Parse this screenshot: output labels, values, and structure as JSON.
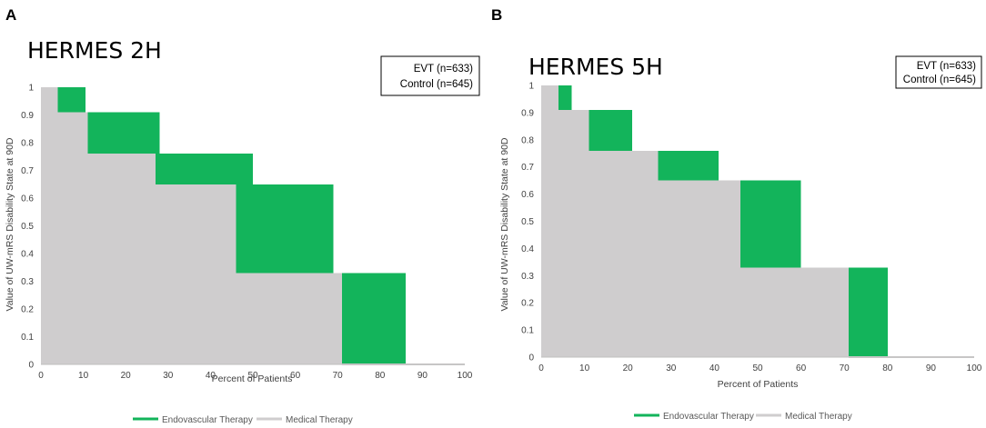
{
  "chart_data": [
    {
      "type": "area",
      "panel_label": "A",
      "title": "HERMES 2H",
      "xlabel": "Percent of Patients",
      "ylabel": "Value of UW-mRS Disability State at 90D",
      "xlim": [
        0,
        100
      ],
      "ylim": [
        0,
        1
      ],
      "x_ticks": [
        0,
        10,
        20,
        30,
        40,
        50,
        60,
        70,
        80,
        90,
        100
      ],
      "y_ticks": [
        0,
        0.1,
        0.2,
        0.3,
        0.4,
        0.5,
        0.6,
        0.7,
        0.8,
        0.9,
        1
      ],
      "x_tick_labels": [
        "0",
        "10",
        "20",
        "30",
        "40",
        "50",
        "60",
        "70",
        "80",
        "90",
        "100"
      ],
      "y_tick_labels": [
        "0",
        "0.1",
        "0.2",
        "0.3",
        "0.4",
        "0.5",
        "0.6",
        "0.7",
        "0.8",
        "0.9",
        "1"
      ],
      "grid": false,
      "box_legend": [
        "EVT (n=633)",
        "Control (n=645)"
      ],
      "box_legend_placement": "top-right",
      "legend_placement": "bottom",
      "series": [
        {
          "name": "Endovascular Therapy",
          "color": "#13b45b",
          "steps": [
            {
              "x0": 0,
              "x1": 10.5,
              "y": 1
            },
            {
              "x0": 10.5,
              "x1": 28,
              "y": 0.91
            },
            {
              "x0": 28,
              "x1": 50,
              "y": 0.76
            },
            {
              "x0": 50,
              "x1": 69,
              "y": 0.65
            },
            {
              "x0": 69,
              "x1": 86,
              "y": 0.33
            },
            {
              "x0": 86,
              "x1": 100,
              "y": 0
            }
          ]
        },
        {
          "name": "Medical Therapy",
          "color": "#cfcdce",
          "steps": [
            {
              "x0": 0,
              "x1": 4,
              "y": 1
            },
            {
              "x0": 4,
              "x1": 11,
              "y": 0.91
            },
            {
              "x0": 11,
              "x1": 27,
              "y": 0.76
            },
            {
              "x0": 27,
              "x1": 46,
              "y": 0.65
            },
            {
              "x0": 46,
              "x1": 71,
              "y": 0.33
            },
            {
              "x0": 71,
              "x1": 100,
              "y": 0
            }
          ]
        }
      ]
    },
    {
      "type": "area",
      "panel_label": "B",
      "title": "HERMES 5H",
      "xlabel": "Percent of Patients",
      "ylabel": "Value of UW-mRS Disability State at 90D",
      "xlim": [
        0,
        100
      ],
      "ylim": [
        0,
        1
      ],
      "x_ticks": [
        0,
        10,
        20,
        30,
        40,
        50,
        60,
        70,
        80,
        90,
        100
      ],
      "y_ticks": [
        0,
        0.1,
        0.2,
        0.3,
        0.4,
        0.5,
        0.6,
        0.7,
        0.8,
        0.9,
        1
      ],
      "x_tick_labels": [
        "0",
        "10",
        "20",
        "30",
        "40",
        "50",
        "60",
        "70",
        "80",
        "90",
        "100"
      ],
      "y_tick_labels": [
        "0",
        "0.1",
        "0.2",
        "0.3",
        "0.4",
        "0.5",
        "0.6",
        "0.7",
        "0.8",
        "0.9",
        "1"
      ],
      "grid": false,
      "box_legend": [
        "EVT (n=633)",
        "Control (n=645)"
      ],
      "box_legend_placement": "top-right",
      "legend_placement": "bottom",
      "series": [
        {
          "name": "Endovascular Therapy",
          "color": "#13b45b",
          "steps": [
            {
              "x0": 0,
              "x1": 7,
              "y": 1
            },
            {
              "x0": 7,
              "x1": 21,
              "y": 0.91
            },
            {
              "x0": 21,
              "x1": 41,
              "y": 0.76
            },
            {
              "x0": 41,
              "x1": 60,
              "y": 0.65
            },
            {
              "x0": 60,
              "x1": 80,
              "y": 0.33
            },
            {
              "x0": 80,
              "x1": 100,
              "y": 0
            }
          ]
        },
        {
          "name": "Medical Therapy",
          "color": "#cfcdce",
          "steps": [
            {
              "x0": 0,
              "x1": 4,
              "y": 1
            },
            {
              "x0": 4,
              "x1": 11,
              "y": 0.91
            },
            {
              "x0": 11,
              "x1": 27,
              "y": 0.76
            },
            {
              "x0": 27,
              "x1": 46,
              "y": 0.65
            },
            {
              "x0": 46,
              "x1": 71,
              "y": 0.33
            },
            {
              "x0": 71,
              "x1": 100,
              "y": 0
            }
          ]
        }
      ]
    }
  ]
}
